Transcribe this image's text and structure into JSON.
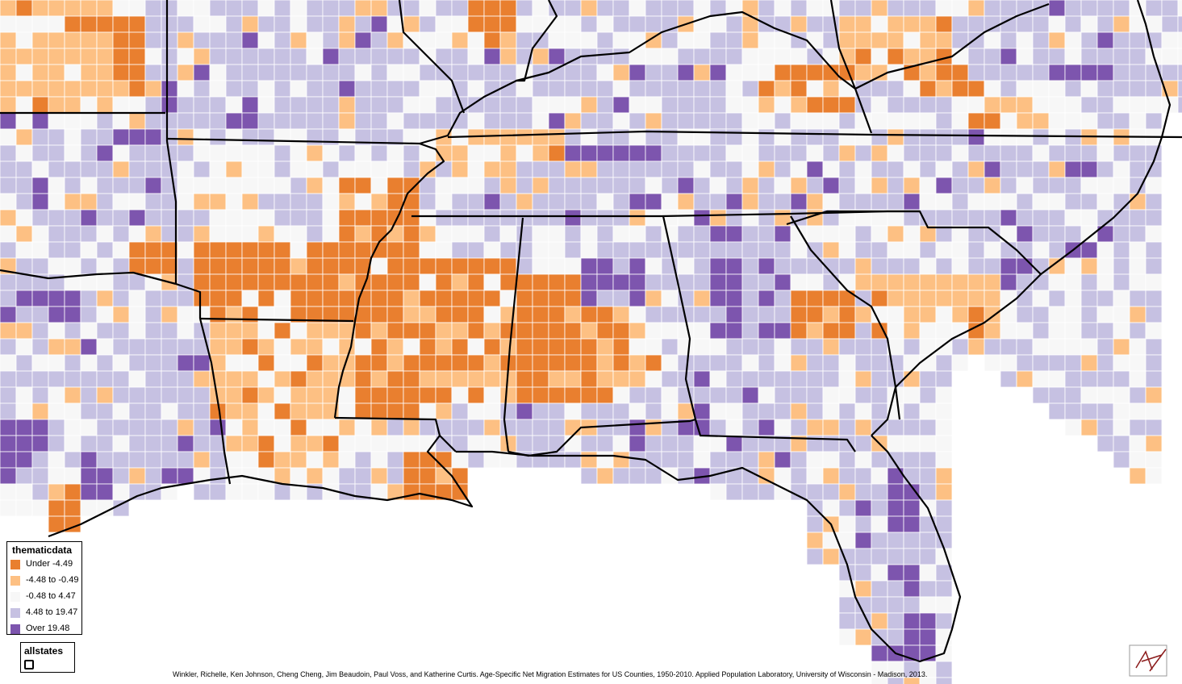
{
  "map": {
    "legend": {
      "title": "thematicdata",
      "items": [
        {
          "label": "Under -4.49",
          "color": "#e97f2f"
        },
        {
          "label": "-4.48 to -0.49",
          "color": "#fdc083"
        },
        {
          "label": "-0.48 to 4.47",
          "color": "#f7f7f7"
        },
        {
          "label": "4.48 to 19.47",
          "color": "#c6c1e2"
        },
        {
          "label": "Over 19.48",
          "color": "#7d55ae"
        }
      ]
    },
    "layer_legend": {
      "title": "allstates"
    },
    "citation": "Winkler, Richelle, Ken Johnson, Cheng Cheng, Jim Beaudoin, Paul Voss, and Katherine Curtis. Age-Specific Net Migration Estimates for US Counties, 1950-2010. Applied Population Laboratory, University of Wisconsin - Madison, 2013.",
    "colors": {
      "water": "#ffffff",
      "state_border": "#000000",
      "county_border": "#ffffff"
    }
  }
}
